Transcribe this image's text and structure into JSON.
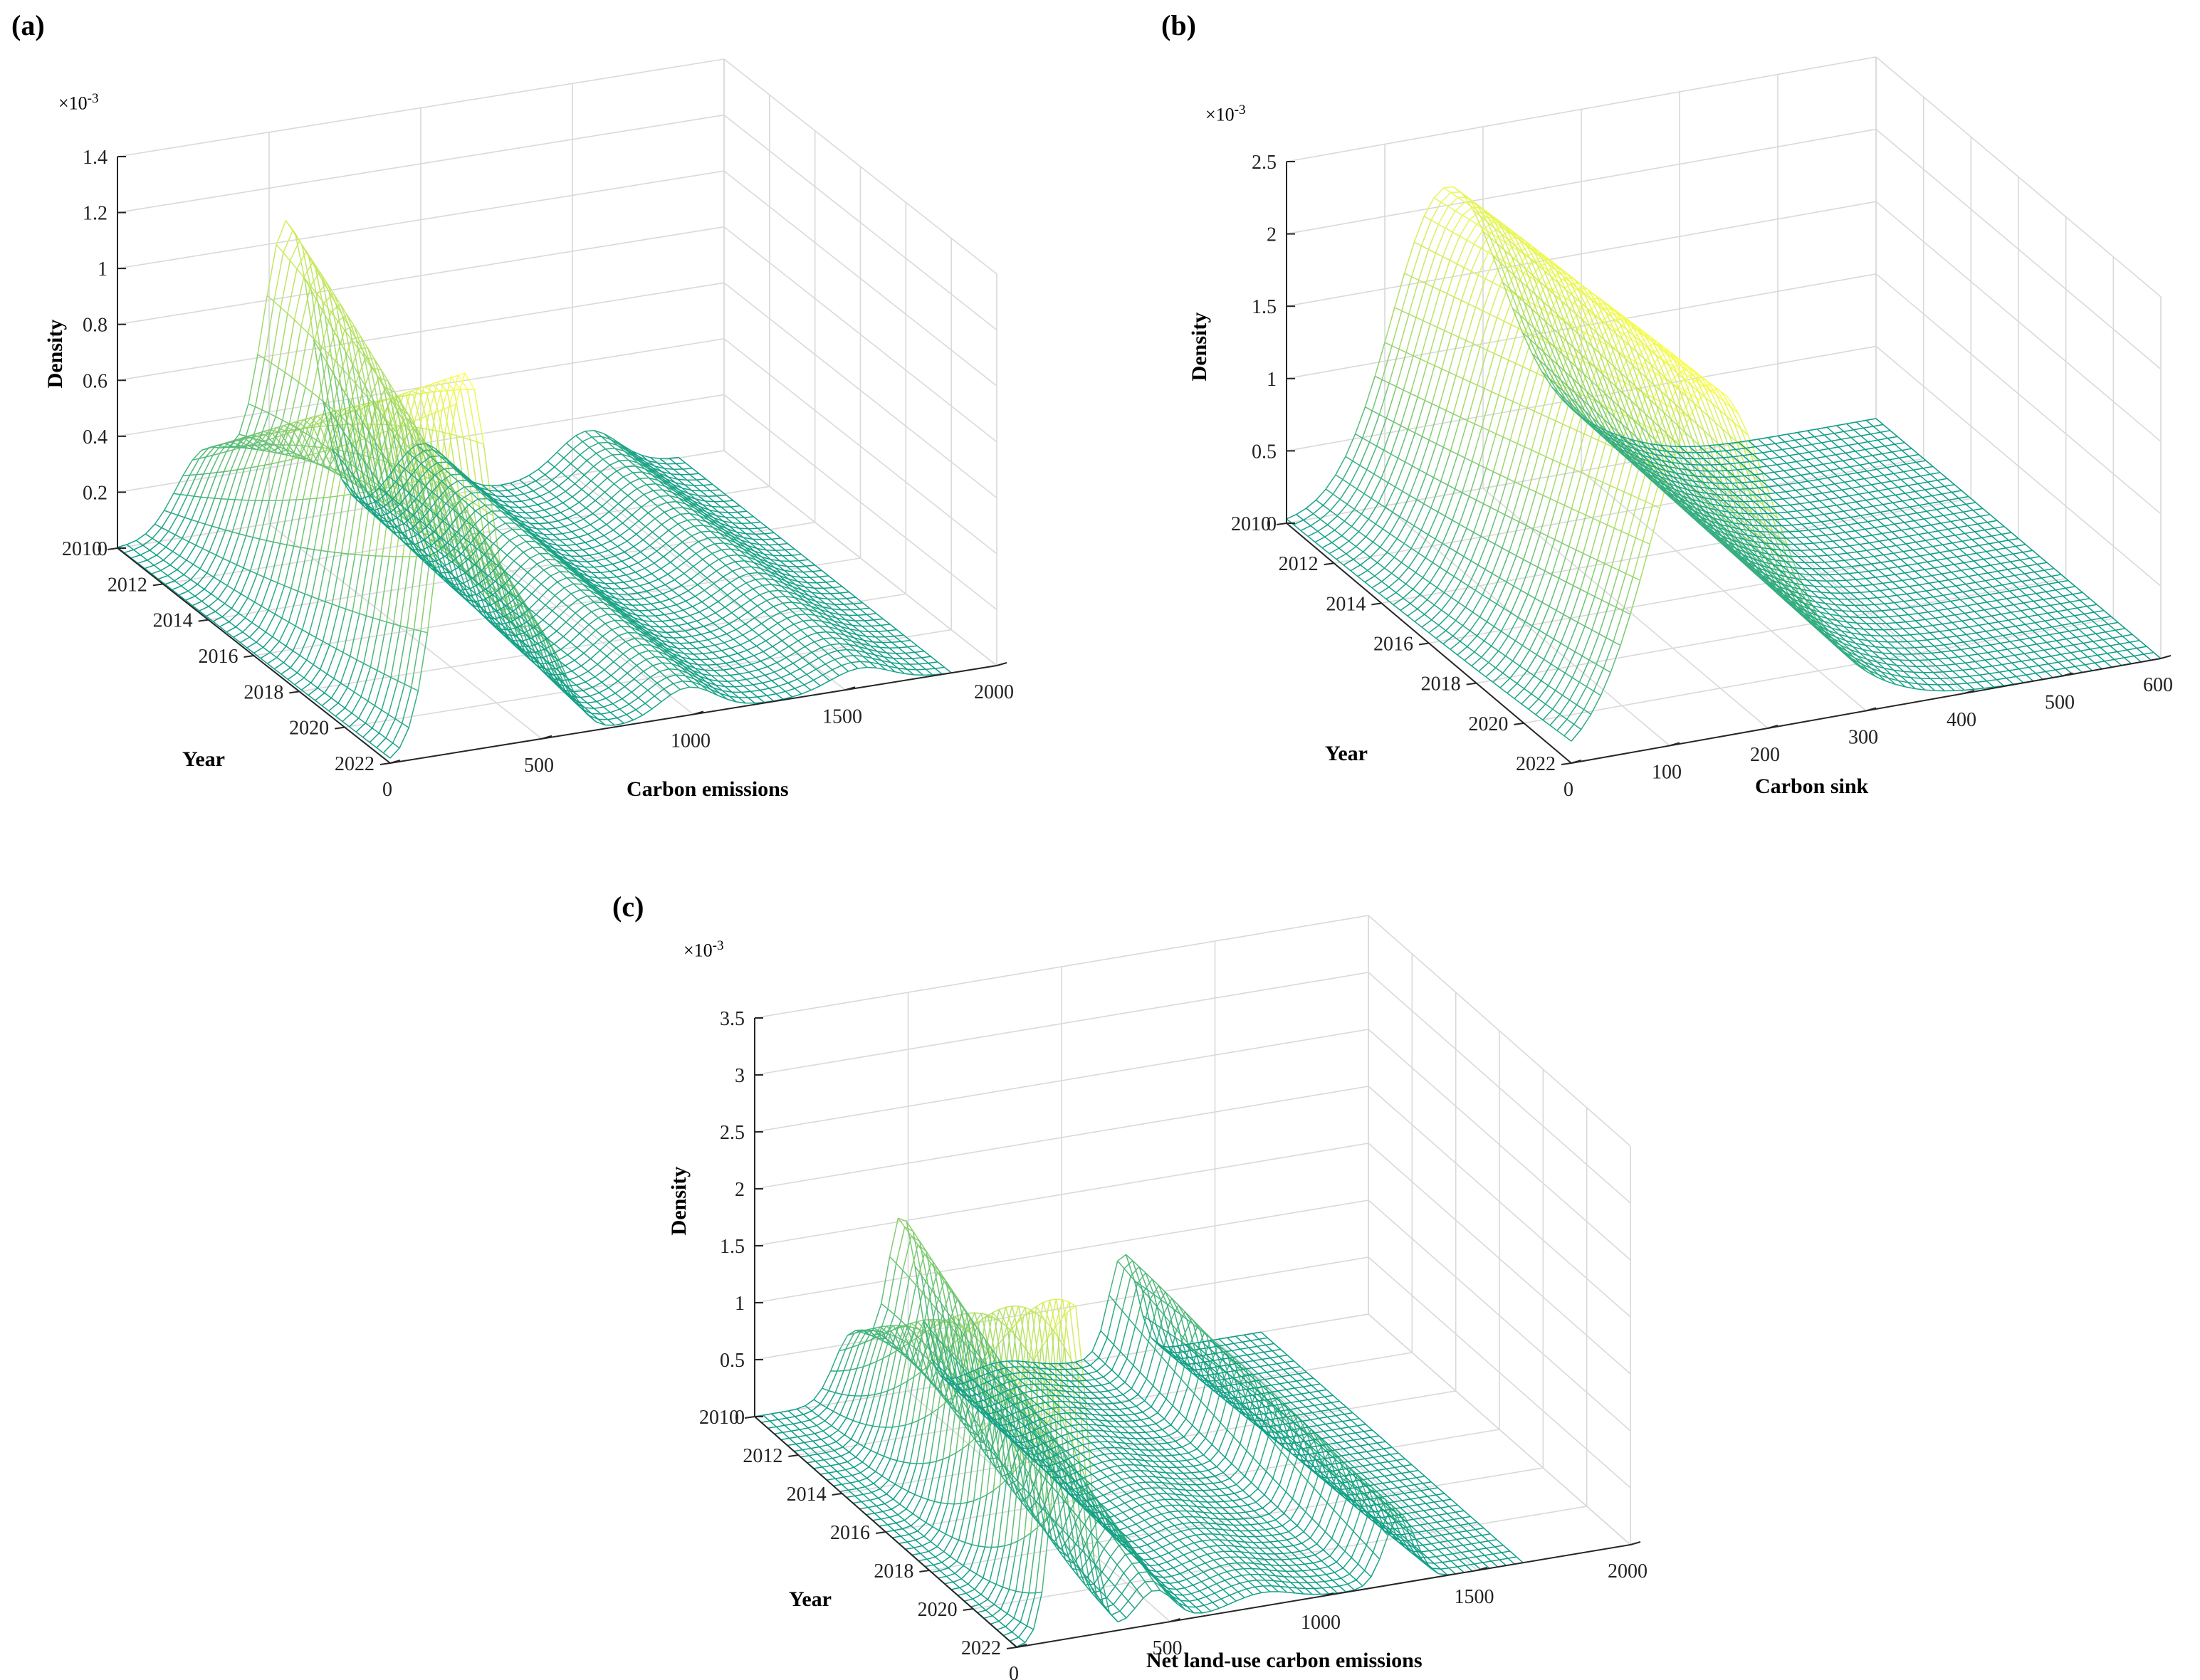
{
  "figure": {
    "background": "#ffffff",
    "colormap": {
      "low": "#0f9e8a",
      "mid": "#9ed86d",
      "high": "#ffff55"
    }
  },
  "chart_data": [
    {
      "id": "a",
      "type": "surface",
      "panel_label": "(a)",
      "xlabel": "Carbon emissions",
      "ylabel": "Year",
      "zlabel": "Density",
      "z_multiplier": "×10",
      "z_exponent": "-3",
      "xlim": [
        0,
        2000
      ],
      "ylim": [
        2010,
        2022
      ],
      "zlim": [
        0,
        1.4
      ],
      "xticks": [
        "0",
        "500",
        "1000",
        "1500",
        "2000"
      ],
      "yticks": [
        "2010",
        "2012",
        "2014",
        "2016",
        "2018",
        "2020",
        "2022"
      ],
      "zticks": [
        "0",
        "0.2",
        "0.4",
        "0.6",
        "0.8",
        "1",
        "1.2",
        "1.4"
      ],
      "data_range": [
        0,
        1850
      ],
      "surface_peaks": [
        {
          "years": [
            2010,
            2022
          ],
          "center": [
            290,
            250
          ],
          "height": [
            0.3,
            1.35
          ],
          "width": [
            95,
            85
          ]
        },
        {
          "years": [
            2010,
            2022
          ],
          "center": [
            560,
            500
          ],
          "height": [
            1.07,
            0.35
          ],
          "width": [
            85,
            80
          ]
        },
        {
          "years": [
            2010,
            2022
          ],
          "center": [
            1000,
            980
          ],
          "height": [
            0.2,
            0.1
          ],
          "width": [
            90,
            90
          ]
        },
        {
          "years": [
            2010,
            2022
          ],
          "center": [
            1550,
            1550
          ],
          "height": [
            0.15,
            0.07
          ],
          "width": [
            100,
            100
          ]
        }
      ]
    },
    {
      "id": "b",
      "type": "surface",
      "panel_label": "(b)",
      "xlabel": "Carbon sink",
      "ylabel": "Year",
      "zlabel": "Density",
      "z_multiplier": "×10",
      "z_exponent": "-3",
      "xlim": [
        0,
        600
      ],
      "ylim": [
        2010,
        2022
      ],
      "zlim": [
        0,
        2.5
      ],
      "xticks": [
        "0",
        "100",
        "200",
        "300",
        "400",
        "500",
        "600"
      ],
      "yticks": [
        "2010",
        "2012",
        "2014",
        "2016",
        "2018",
        "2020",
        "2022"
      ],
      "zticks": [
        "0",
        "0.5",
        "1",
        "1.5",
        "2",
        "2.5"
      ],
      "data_range": [
        0,
        600
      ],
      "surface_peaks": [
        {
          "years": [
            2010,
            2022
          ],
          "center": [
            160,
            140
          ],
          "height": [
            2.0,
            2.3
          ],
          "width": [
            55,
            60
          ]
        },
        {
          "years": [
            2010,
            2022
          ],
          "center": [
            260,
            240
          ],
          "height": [
            0.35,
            0.3
          ],
          "width": [
            70,
            70
          ]
        }
      ]
    },
    {
      "id": "c",
      "type": "surface",
      "panel_label": "(c)",
      "xlabel": "Net land-use carbon emissions",
      "ylabel": "Year",
      "zlabel": "Density",
      "z_multiplier": "×10",
      "z_exponent": "-3",
      "xlim": [
        0,
        2000
      ],
      "ylim": [
        2010,
        2022
      ],
      "zlim": [
        0,
        3.5
      ],
      "xticks": [
        "0",
        "500",
        "1000",
        "1500",
        "2000"
      ],
      "yticks": [
        "2010",
        "2012",
        "2014",
        "2016",
        "2018",
        "2020",
        "2022"
      ],
      "zticks": [
        "0",
        "0.5",
        "1",
        "1.5",
        "2",
        "2.5",
        "3",
        "3.5"
      ],
      "data_range": [
        0,
        1650
      ],
      "surface_peaks": [
        {
          "years": [
            2010,
            2022
          ],
          "center": [
            320,
            180
          ],
          "height": [
            0.6,
            3.0
          ],
          "width": [
            60,
            50
          ]
        },
        {
          "years": [
            2010,
            2022
          ],
          "center": [
            480,
            450
          ],
          "height": [
            1.55,
            0.3
          ],
          "width": [
            50,
            60
          ]
        },
        {
          "years": [
            2010,
            2022
          ],
          "center": [
            1200,
            1250
          ],
          "height": [
            0.9,
            0.6
          ],
          "width": [
            45,
            50
          ]
        },
        {
          "years": [
            2010,
            2022
          ],
          "center": [
            800,
            800
          ],
          "height": [
            0.12,
            0.12
          ],
          "width": [
            100,
            100
          ]
        }
      ]
    }
  ]
}
